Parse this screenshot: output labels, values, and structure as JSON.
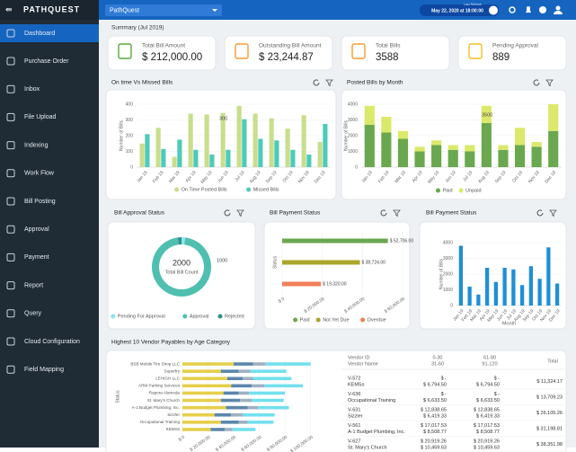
{
  "topbar": {
    "logo": "PATHQUEST",
    "workspace": "PathQuest",
    "refresh_label": "Last Refresh",
    "refresh_time": "May 22, 2020 at 18:00:00"
  },
  "sidebar": [
    "Dashboard",
    "Purchase Order",
    "Inbox",
    "File Upload",
    "Indexing",
    "Work Flow",
    "Bill Posting",
    "Approval",
    "Payment",
    "Report",
    "Query",
    "Cloud Configuration",
    "Field Mapping"
  ],
  "summary": {
    "title": "Summary (Jul 2019)",
    "cards": [
      {
        "label": "Total Bill Amount",
        "value": "$ 212,000.00"
      },
      {
        "label": "Outstanding Bill Amount",
        "value": "$ 23,244.87"
      },
      {
        "label": "Total Bills",
        "value": "3588"
      },
      {
        "label": "Pending Approval",
        "value": "889"
      }
    ]
  },
  "chart_data": [
    {
      "type": "bar",
      "title": "On time Vs Missed Bills",
      "ylabel": "Number of Bills",
      "annotation": "300",
      "categories": [
        "Jan 19",
        "Feb 19",
        "Mar 19",
        "Apr 19",
        "May 19",
        "Jun 19",
        "Jul 19",
        "Aug 19",
        "Sep 19",
        "Oct 19",
        "Nov 19",
        "Dec 19"
      ],
      "ylim": [
        0,
        400
      ],
      "yticks": [
        0,
        100,
        200,
        300,
        400
      ],
      "series": [
        {
          "name": "On Time Posted Bills",
          "color": "#c8de8c",
          "values": [
            150,
            250,
            65,
            340,
            335,
            345,
            390,
            340,
            310,
            245,
            330,
            160
          ]
        },
        {
          "name": "Missed Bills",
          "color": "#4fcab9",
          "values": [
            210,
            115,
            175,
            110,
            80,
            110,
            305,
            180,
            170,
            110,
            80,
            275
          ]
        }
      ]
    },
    {
      "type": "stacked_bar",
      "title": "Posted Bills by Month",
      "ylabel": "Number of Bills",
      "annotation": "3500",
      "categories": [
        "Jan 19",
        "Feb 19",
        "Mar 19",
        "Apr 19",
        "May 19",
        "Jun 19",
        "Jul 19",
        "Aug 19",
        "Sep 19",
        "Oct 19",
        "Nov 19",
        "Dec 19"
      ],
      "ylim": [
        0,
        4000
      ],
      "yticks": [
        0,
        1000,
        2000,
        3000,
        4000
      ],
      "series": [
        {
          "name": "Paid",
          "color": "#6aa84f",
          "values": [
            2700,
            2200,
            1800,
            1000,
            1400,
            1100,
            1000,
            2800,
            1100,
            1400,
            1300,
            2300
          ]
        },
        {
          "name": "Unpaid",
          "color": "#dbe96a",
          "values": [
            1200,
            1000,
            500,
            300,
            300,
            300,
            400,
            1100,
            300,
            1100,
            300,
            1700
          ]
        }
      ]
    },
    {
      "type": "donut",
      "title": "Bill Approval Status",
      "center_value": "2000",
      "center_label": "Total Bill Count",
      "annotation": "1000",
      "categories": [
        "Pending For Approval",
        "Approval",
        "Rejected"
      ],
      "values": [
        40,
        1920,
        40
      ],
      "colors": [
        "#8ce6ef",
        "#4fbfb0",
        "#2f8f8a"
      ]
    },
    {
      "type": "hbar",
      "title": "Bill Payment Status",
      "ylabel": "Status",
      "categories": [
        "Paid",
        "Not Yet Due",
        "Overdue"
      ],
      "values": [
        52706,
        38724,
        19320
      ],
      "value_labels": [
        "$ 52,706.00",
        "$ 38,724.00",
        "$ 19,320.00"
      ],
      "colors": [
        "#6aa84f",
        "#a9a62c",
        "#f0805a"
      ],
      "xlim": [
        0,
        60000
      ],
      "xticks": [
        {
          "value": 0,
          "label": "$ 0"
        },
        {
          "value": 20000,
          "label": "$ 20,000.00"
        },
        {
          "value": 40000,
          "label": "$ 40,000.00"
        },
        {
          "value": 60000,
          "label": "$ 60,000.00"
        }
      ]
    },
    {
      "type": "bar",
      "title": "Bill Payment Status",
      "ylabel": "Number of Bills",
      "xlabel": "Month",
      "categories": [
        "Jan 19",
        "Feb 19",
        "Mar 19",
        "Apr 19",
        "May 19",
        "Jun 19",
        "Jul 19",
        "Aug 19",
        "Sep 19",
        "Oct 19",
        "Nov 19",
        "Dec 19"
      ],
      "ylim": [
        0,
        4000
      ],
      "yticks": [
        0,
        1000,
        2000,
        3000,
        4000
      ],
      "series": [
        {
          "color": "#1f8fd6",
          "values": [
            3800,
            1200,
            700,
            2400,
            1500,
            2400,
            2300,
            1300,
            2500,
            1700,
            3700,
            1400
          ]
        }
      ]
    },
    {
      "type": "stacked_hbar",
      "title": "Highest 10 Vendor Payables by Age Category",
      "ylabel": "Status",
      "categories": [
        "BSB Mobile Tire Shop LLC",
        "Superfry",
        "LEHIGH LLC",
        "ARM Parking Services",
        "Rapera Alameda",
        "St. Mary's Church",
        "A-1 Budget Plumbing, Inc.",
        "Sizzler",
        "Occupational Training",
        "KEMSs"
      ],
      "xlim": [
        0,
        110000
      ],
      "xticks": [
        {
          "value": 0,
          "label": "$ 0"
        },
        {
          "value": 20000,
          "label": "$ 20,000.00"
        },
        {
          "value": 40000,
          "label": "$ 40,000.00"
        },
        {
          "value": 60000,
          "label": "$ 60,000.00"
        },
        {
          "value": 80000,
          "label": "$ 80,000.00"
        },
        {
          "value": 100000,
          "label": "$ 100,000.00"
        }
      ],
      "series": [
        {
          "color": "#e6cf4a",
          "values": [
            40000,
            30000,
            35000,
            38000,
            32000,
            30000,
            34000,
            25000,
            30000,
            22000
          ]
        },
        {
          "color": "#5b86ad",
          "values": [
            15000,
            14000,
            12000,
            16000,
            12000,
            15000,
            17000,
            13000,
            14000,
            11000
          ]
        },
        {
          "color": "#9fb0c0",
          "values": [
            10000,
            9000,
            8000,
            10000,
            8000,
            9000,
            8000,
            9000,
            7000,
            6000
          ]
        },
        {
          "color": "#72e0ee",
          "values": [
            35000,
            28000,
            30000,
            30000,
            28000,
            25000,
            24000,
            25000,
            20000,
            18000
          ]
        }
      ]
    }
  ],
  "vendor_table": {
    "headers": [
      [
        "Vendor ID",
        "Vendor Name"
      ],
      [
        "0-30",
        "31-60"
      ],
      [
        "61-90",
        "91-120"
      ],
      [
        "Total"
      ]
    ],
    "rows": [
      {
        "id": "V-572",
        "name": "KEMSs",
        "c1": [
          "$ -",
          "$ 6,794.50"
        ],
        "c2": [
          "$ -",
          "$ 6,794.50"
        ],
        "total": "$ 11,324.17"
      },
      {
        "id": "V-636",
        "name": "Occupational Training",
        "c1": [
          "$ -",
          "$ 6,633.50"
        ],
        "c2": [
          "$ -",
          "$ 6,633.50"
        ],
        "total": "$ 13,709.23"
      },
      {
        "id": "V-631",
        "name": "Sizzler",
        "c1": [
          "$ 12,838.65",
          "$ 6,419.33"
        ],
        "c2": [
          "$ 12,838.65",
          "$ 6,419.33"
        ],
        "total": "$ 26,105.26"
      },
      {
        "id": "V-561",
        "name": "A-1 Budget Plumbing, Inc.",
        "c1": [
          "$ 17,017.53",
          "$ 8,508.77"
        ],
        "c2": [
          "$ 17,017.53",
          "$ 8,508.77"
        ],
        "total": "$ 31,198.81"
      },
      {
        "id": "V-627",
        "name": "St. Mary's Church",
        "c1": [
          "$ 20,919.26",
          "$ 10,459.63"
        ],
        "c2": [
          "$ 20,919.26",
          "$ 10,459.63"
        ],
        "total": "$ 38,351.98"
      }
    ]
  }
}
